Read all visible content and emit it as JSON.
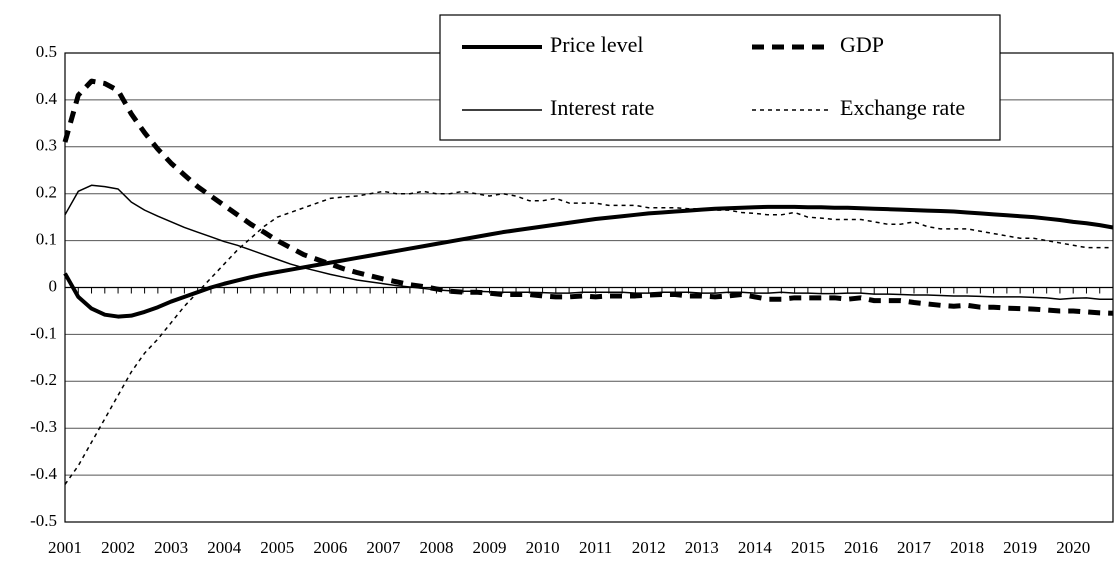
{
  "chart_data": {
    "type": "line",
    "categories": [
      "2001",
      null,
      null,
      null,
      "2002",
      null,
      null,
      null,
      "2003",
      null,
      null,
      null,
      "2004",
      null,
      null,
      null,
      "2005",
      null,
      null,
      null,
      "2006",
      null,
      null,
      null,
      "2007",
      null,
      null,
      null,
      "2008",
      null,
      null,
      null,
      "2009",
      null,
      null,
      null,
      "2010",
      null,
      null,
      null,
      "2011",
      null,
      null,
      null,
      "2012",
      null,
      null,
      null,
      "2013",
      null,
      null,
      null,
      "2014",
      null,
      null,
      null,
      "2015",
      null,
      null,
      null,
      "2016",
      null,
      null,
      null,
      "2017",
      null,
      null,
      null,
      "2018",
      null,
      null,
      null,
      "2019",
      null,
      null,
      null,
      "2020",
      null,
      null,
      null
    ],
    "ylim": [
      -0.5,
      0.5
    ],
    "yticks": [
      -0.5,
      -0.4,
      -0.3,
      -0.2,
      -0.1,
      0,
      0.1,
      0.2,
      0.3,
      0.4,
      0.5
    ],
    "grid": true,
    "legend": "top-right",
    "series": [
      {
        "name": "Price level",
        "color": "#000000",
        "style": "solid-thick",
        "values": [
          0.03,
          -0.02,
          -0.045,
          -0.058,
          -0.062,
          -0.06,
          -0.052,
          -0.042,
          -0.03,
          -0.02,
          -0.01,
          0,
          0.008,
          0.015,
          0.022,
          0.028,
          0.033,
          0.038,
          0.043,
          0.048,
          0.053,
          0.058,
          0.063,
          0.068,
          0.073,
          0.078,
          0.083,
          0.088,
          0.093,
          0.098,
          0.103,
          0.108,
          0.113,
          0.118,
          0.122,
          0.126,
          0.13,
          0.134,
          0.138,
          0.142,
          0.146,
          0.149,
          0.152,
          0.155,
          0.158,
          0.16,
          0.162,
          0.164,
          0.166,
          0.168,
          0.169,
          0.17,
          0.171,
          0.172,
          0.172,
          0.172,
          0.171,
          0.171,
          0.17,
          0.17,
          0.169,
          0.168,
          0.167,
          0.166,
          0.165,
          0.164,
          0.163,
          0.162,
          0.16,
          0.158,
          0.156,
          0.154,
          0.152,
          0.15,
          0.147,
          0.144,
          0.14,
          0.137,
          0.133,
          0.128
        ]
      },
      {
        "name": "GDP",
        "color": "#000000",
        "style": "dashed-thick",
        "values": [
          0.31,
          0.41,
          0.44,
          0.435,
          0.42,
          0.37,
          0.33,
          0.295,
          0.265,
          0.24,
          0.215,
          0.195,
          0.175,
          0.155,
          0.135,
          0.118,
          0.1,
          0.085,
          0.07,
          0.06,
          0.05,
          0.04,
          0.032,
          0.025,
          0.018,
          0.012,
          0.006,
          0.002,
          -0.003,
          -0.008,
          -0.01,
          -0.01,
          -0.012,
          -0.015,
          -0.015,
          -0.015,
          -0.018,
          -0.02,
          -0.02,
          -0.018,
          -0.02,
          -0.018,
          -0.018,
          -0.018,
          -0.016,
          -0.015,
          -0.015,
          -0.018,
          -0.018,
          -0.02,
          -0.018,
          -0.015,
          -0.02,
          -0.025,
          -0.025,
          -0.022,
          -0.022,
          -0.022,
          -0.022,
          -0.025,
          -0.022,
          -0.028,
          -0.028,
          -0.028,
          -0.032,
          -0.035,
          -0.038,
          -0.04,
          -0.038,
          -0.042,
          -0.042,
          -0.044,
          -0.045,
          -0.046,
          -0.048,
          -0.05,
          -0.05,
          -0.052,
          -0.054,
          -0.055
        ]
      },
      {
        "name": "Interest rate",
        "color": "#000000",
        "style": "solid-thin",
        "values": [
          0.155,
          0.205,
          0.218,
          0.215,
          0.21,
          0.182,
          0.165,
          0.152,
          0.14,
          0.128,
          0.118,
          0.108,
          0.098,
          0.09,
          0.08,
          0.07,
          0.06,
          0.05,
          0.042,
          0.035,
          0.028,
          0.022,
          0.016,
          0.012,
          0.008,
          0.004,
          0.001,
          -0.002,
          -0.005,
          -0.007,
          -0.008,
          -0.008,
          -0.009,
          -0.01,
          -0.01,
          -0.01,
          -0.011,
          -0.012,
          -0.012,
          -0.01,
          -0.01,
          -0.01,
          -0.01,
          -0.012,
          -0.012,
          -0.01,
          -0.01,
          -0.01,
          -0.012,
          -0.012,
          -0.01,
          -0.01,
          -0.012,
          -0.012,
          -0.01,
          -0.012,
          -0.012,
          -0.013,
          -0.013,
          -0.012,
          -0.012,
          -0.014,
          -0.014,
          -0.015,
          -0.016,
          -0.016,
          -0.017,
          -0.018,
          -0.018,
          -0.019,
          -0.02,
          -0.02,
          -0.02,
          -0.021,
          -0.022,
          -0.025,
          -0.023,
          -0.022,
          -0.025,
          -0.025
        ]
      },
      {
        "name": "Exchange rate",
        "color": "#000000",
        "style": "dotted",
        "values": [
          -0.42,
          -0.38,
          -0.33,
          -0.28,
          -0.23,
          -0.18,
          -0.14,
          -0.11,
          -0.075,
          -0.04,
          -0.01,
          0.02,
          0.05,
          0.08,
          0.105,
          0.13,
          0.15,
          0.16,
          0.17,
          0.18,
          0.19,
          0.193,
          0.195,
          0.2,
          0.205,
          0.2,
          0.2,
          0.205,
          0.2,
          0.2,
          0.205,
          0.2,
          0.195,
          0.2,
          0.195,
          0.185,
          0.185,
          0.19,
          0.18,
          0.18,
          0.18,
          0.175,
          0.175,
          0.175,
          0.17,
          0.17,
          0.17,
          0.168,
          0.168,
          0.165,
          0.165,
          0.16,
          0.158,
          0.155,
          0.155,
          0.16,
          0.15,
          0.148,
          0.145,
          0.145,
          0.145,
          0.14,
          0.135,
          0.135,
          0.14,
          0.13,
          0.125,
          0.125,
          0.125,
          0.12,
          0.115,
          0.11,
          0.105,
          0.105,
          0.1,
          0.095,
          0.09,
          0.085,
          0.085,
          0.085
        ]
      }
    ]
  }
}
